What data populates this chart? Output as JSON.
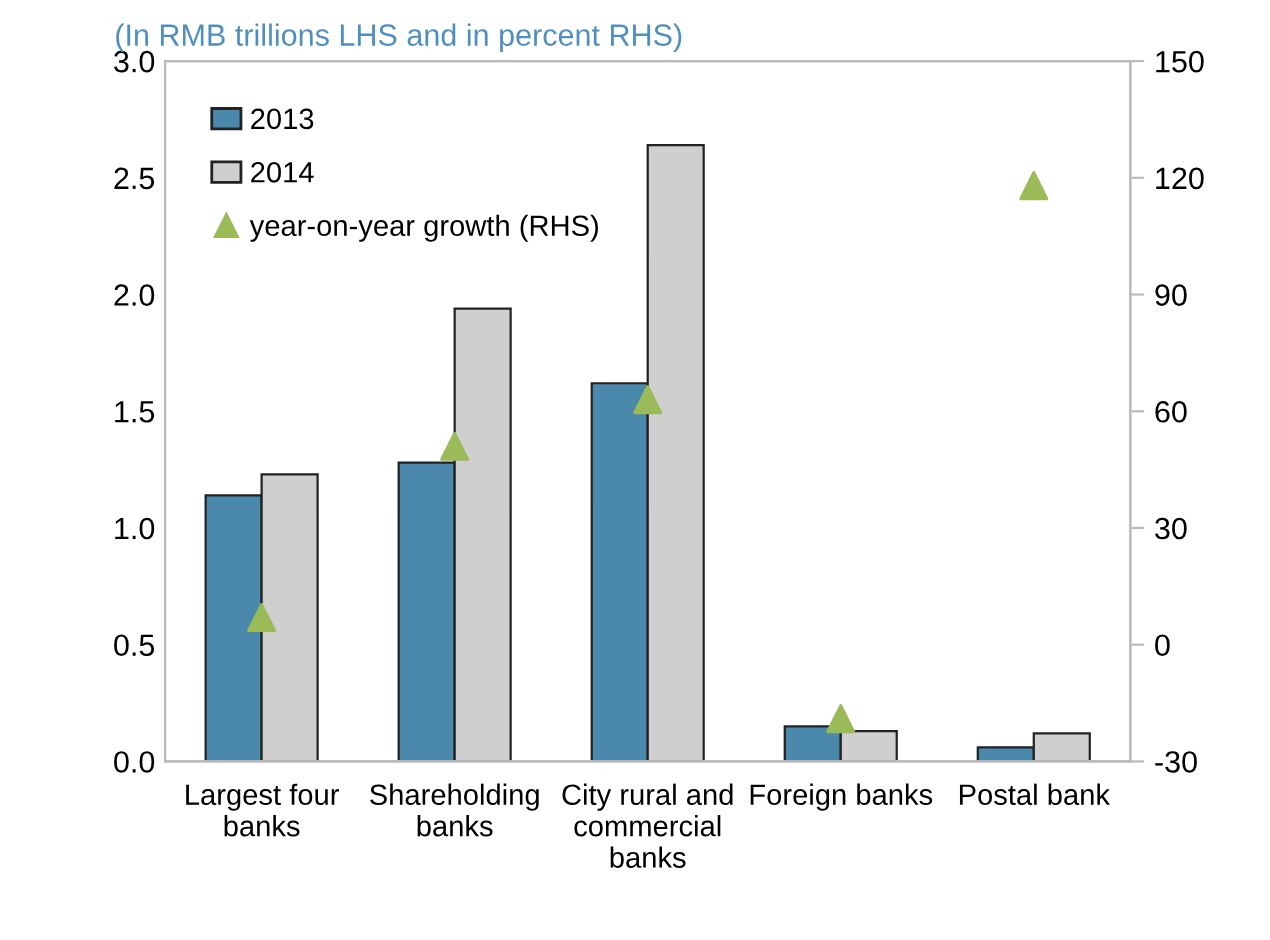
{
  "chart_data": {
    "type": "bar",
    "subtitle": "(In RMB trillions LHS and in percent RHS)",
    "categories": [
      "Largest four\nbanks",
      "Shareholding\nbanks",
      "City rural and\ncommercial\nbanks",
      "Foreign banks",
      "Postal bank"
    ],
    "series": [
      {
        "name": "2013",
        "color": "#4a89ab",
        "values": [
          1.14,
          1.28,
          1.62,
          0.15,
          0.06
        ]
      },
      {
        "name": "2014",
        "color": "#cfcfcf",
        "values": [
          1.23,
          1.94,
          2.64,
          0.13,
          0.12
        ]
      },
      {
        "name": "year-on-year growth (RHS)",
        "type": "scatter",
        "axis": "y2",
        "color": "#9bbb59",
        "marker": "triangle",
        "values": [
          7,
          51,
          63,
          -19,
          118
        ]
      }
    ],
    "ylim": [
      0,
      3.0
    ],
    "yticks": [
      {
        "value": 0,
        "label": "0.0"
      },
      0.5,
      {
        "value": 1,
        "label": "1.0"
      },
      1.5,
      {
        "value": 2,
        "label": "2.0"
      },
      2.5,
      {
        "value": 3,
        "label": "3.0"
      }
    ],
    "y2lim": [
      -30,
      150
    ],
    "y2ticks": [
      -30,
      0,
      30,
      60,
      90,
      120,
      150
    ],
    "legend": "top left",
    "grid": false
  }
}
